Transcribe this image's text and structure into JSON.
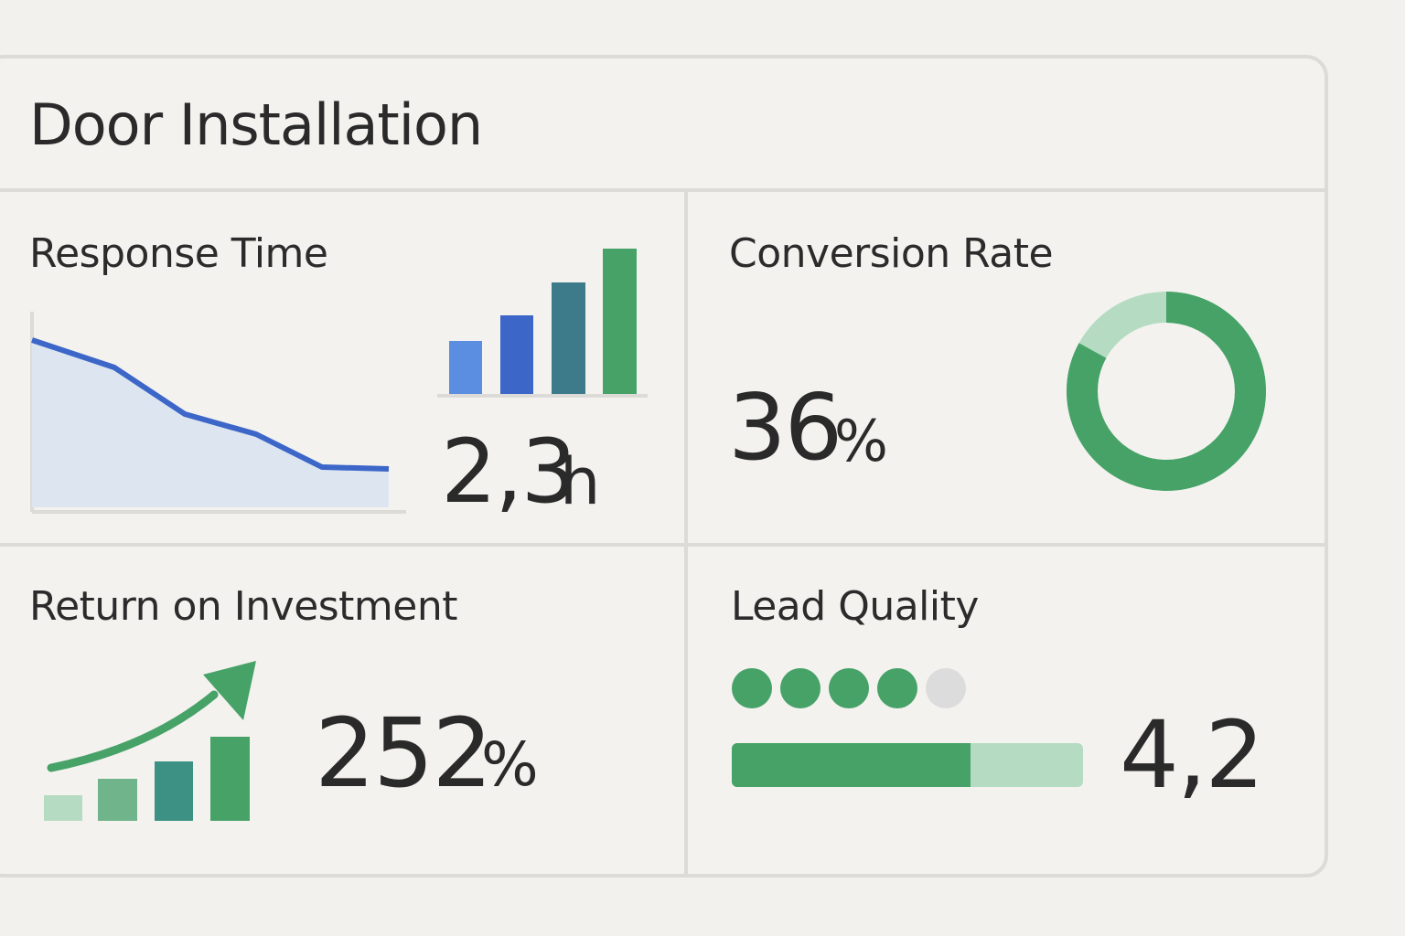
{
  "header": {
    "title": "Door Installation"
  },
  "colors": {
    "green": "#46a267",
    "green_light": "#b5dcc2",
    "blue": "#3c66c8",
    "blue_light": "#5b8ee0",
    "teal": "#3d7b8a",
    "gray_dot": "#dcdcdc",
    "area_fill": "#dde6f0"
  },
  "response_time": {
    "title": "Response Time",
    "value": "2,3",
    "unit": "h",
    "trend_icon": "line-area-chart-icon",
    "bars_icon": "bar-chart-icon"
  },
  "conversion_rate": {
    "title": "Conversion Rate",
    "value": "36",
    "unit": "%",
    "donut_fraction": 0.83,
    "icon": "donut-chart-icon"
  },
  "roi": {
    "title": "Return on Investment",
    "value": "252",
    "unit": "%",
    "icon": "growth-bars-arrow-icon"
  },
  "lead_quality": {
    "title": "Lead Quality",
    "value": "4,2",
    "rating": 4,
    "rating_max": 5,
    "progress_fraction": 0.68,
    "icon": "rating-dots-icon"
  }
}
